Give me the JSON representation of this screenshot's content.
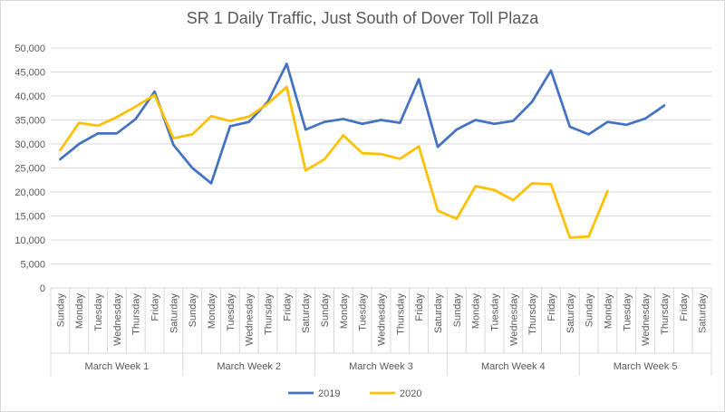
{
  "chart_data": {
    "type": "line",
    "title": "SR 1 Daily Traffic, Just South of Dover Toll Plaza",
    "xlabel": "",
    "ylabel": "",
    "ylim": [
      0,
      50000
    ],
    "yticks": [
      "0",
      "5,000",
      "10,000",
      "15,000",
      "20,000",
      "25,000",
      "30,000",
      "35,000",
      "40,000",
      "45,000",
      "50,000"
    ],
    "ytick_values": [
      0,
      5000,
      10000,
      15000,
      20000,
      25000,
      30000,
      35000,
      40000,
      45000,
      50000
    ],
    "grid": "horizontal",
    "legend_position": "bottom",
    "groups": [
      {
        "label": "March Week 1",
        "days": [
          "Sunday",
          "Monday",
          "Tuesday",
          "Wednesday",
          "Thursday",
          "Friday",
          "Saturday"
        ]
      },
      {
        "label": "March Week 2",
        "days": [
          "Sunday",
          "Monday",
          "Tuesday",
          "Wednesday",
          "Thursday",
          "Friday",
          "Saturday"
        ]
      },
      {
        "label": "March Week 3",
        "days": [
          "Sunday",
          "Monday",
          "Tuesday",
          "Wednesday",
          "Thursday",
          "Friday",
          "Saturday"
        ]
      },
      {
        "label": "March Week 4",
        "days": [
          "Sunday",
          "Monday",
          "Tuesday",
          "Wednesday",
          "Thursday",
          "Friday",
          "Saturday"
        ]
      },
      {
        "label": "March Week 5",
        "days": [
          "Sunday",
          "Monday",
          "Tuesday",
          "Wednesday",
          "Thursday",
          "Friday",
          "Saturday"
        ]
      }
    ],
    "series": [
      {
        "name": "2019",
        "color": "#4472c4",
        "values": [
          26800,
          30000,
          32200,
          32200,
          35200,
          40900,
          29800,
          25000,
          21800,
          33700,
          34600,
          38800,
          46700,
          33000,
          34600,
          35200,
          34200,
          35000,
          34400,
          43500,
          29400,
          33000,
          35000,
          34200,
          34800,
          38800,
          45300,
          33600,
          32000,
          34600,
          34000,
          35300,
          38000
        ]
      },
      {
        "name": "2020",
        "color": "#ffc000",
        "values": [
          28700,
          34400,
          33800,
          35600,
          37800,
          40200,
          31200,
          32000,
          35800,
          34800,
          35700,
          38400,
          41900,
          24500,
          26800,
          31800,
          28100,
          27900,
          26900,
          29500,
          16100,
          14400,
          21200,
          20400,
          18300,
          21800,
          21600,
          10500,
          10700,
          20200
        ]
      }
    ]
  }
}
